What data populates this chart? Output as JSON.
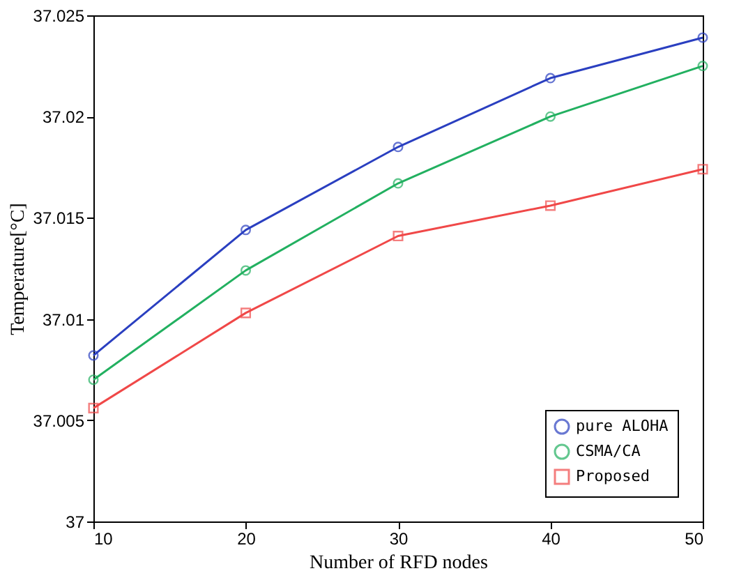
{
  "chart_data": {
    "type": "line",
    "xlabel": "Number of RFD nodes",
    "ylabel": "Temperature[°C]",
    "x": [
      10,
      20,
      30,
      40,
      50
    ],
    "series": [
      {
        "name": "pure ALOHA",
        "color": "#2a3fc0",
        "marker": "circle",
        "values": [
          37.0082,
          37.0144,
          37.0185,
          37.0219,
          37.0239
        ]
      },
      {
        "name": "CSMA/CA",
        "color": "#22b060",
        "marker": "circle",
        "values": [
          37.007,
          37.0124,
          37.0167,
          37.02,
          37.0225
        ]
      },
      {
        "name": "Proposed",
        "color": "#f04848",
        "marker": "square",
        "values": [
          37.0056,
          37.0103,
          37.0141,
          37.0156,
          37.0174
        ]
      }
    ],
    "xlim": [
      10,
      50
    ],
    "xticks": [
      10,
      20,
      30,
      40,
      50
    ],
    "ylim": [
      37,
      37.025
    ],
    "yticks": [
      37,
      37.005,
      37.01,
      37.015,
      37.02,
      37.025
    ],
    "grid": false,
    "legend": "bottom right",
    "line_style": "solid"
  }
}
